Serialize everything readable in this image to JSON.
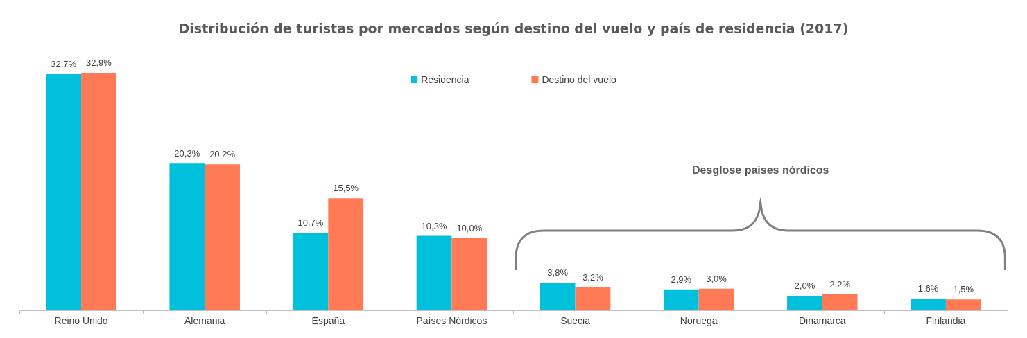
{
  "chart_data": {
    "type": "bar",
    "title": "Distribución de turistas por mercados según destino del vuelo y país de residencia (2017)",
    "categories": [
      "Reino Unido",
      "Alemania",
      "España",
      "Países Nórdicos",
      "Suecia",
      "Noruega",
      "Dinamarca",
      "Finlandia"
    ],
    "series": [
      {
        "name": "Residencia",
        "color": "#00c0dc",
        "values": [
          32.7,
          20.3,
          10.7,
          10.3,
          3.8,
          2.9,
          2.0,
          1.6
        ],
        "value_labels": [
          "32,7%",
          "20,3%",
          "10,7%",
          "10,3%",
          "3,8%",
          "2,9%",
          "2,0%",
          "1,6%"
        ]
      },
      {
        "name": "Destino del vuelo",
        "color": "#ff7a55",
        "values": [
          32.9,
          20.2,
          15.5,
          10.0,
          3.2,
          3.0,
          2.2,
          1.5
        ],
        "value_labels": [
          "32,9%",
          "20,2%",
          "15,5%",
          "10,0%",
          "3,2%",
          "3,0%",
          "2,2%",
          "1,5%"
        ]
      }
    ],
    "annotations": [
      "Desglose países nórdicos"
    ],
    "legend": "top"
  }
}
